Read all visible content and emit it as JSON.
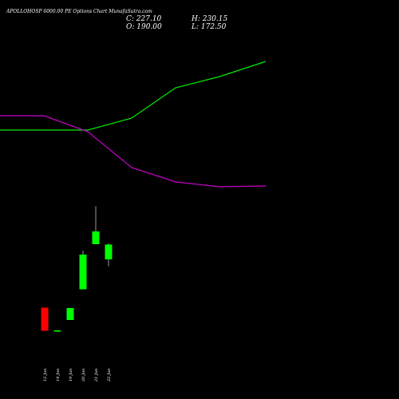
{
  "header": {
    "title": "APOLLOHOSP 6000.00  PE Options  Chart MunafaSutra.com",
    "close_label": "C: 227.10",
    "open_label": "O: 190.00",
    "high_label": "H: 230.15",
    "low_label": "L: 172.50"
  },
  "colors": {
    "background": "#000000",
    "up": "#00ff00",
    "down": "#ff0000",
    "line_green": "#00ee00",
    "line_magenta": "#cc00cc",
    "text": "#ffffff"
  },
  "chart_data": {
    "type": "candlestick",
    "categories": [
      "12 Jun",
      "14 Jun",
      "19 Jun",
      "20 Jun",
      "21 Jun",
      "22 Jun"
    ],
    "candles": [
      {
        "date": "12 Jun",
        "open": 69,
        "high": 69,
        "low": 11,
        "close": 11,
        "dir": "down"
      },
      {
        "date": "14 Jun",
        "open": 10,
        "high": 12,
        "low": 8,
        "close": 12,
        "dir": "up"
      },
      {
        "date": "19 Jun",
        "open": 38,
        "high": 68,
        "low": 38,
        "close": 68,
        "dir": "up"
      },
      {
        "date": "20 Jun",
        "open": 115,
        "high": 212,
        "low": 115,
        "close": 202,
        "dir": "up"
      },
      {
        "date": "21 Jun",
        "open": 228,
        "high": 323,
        "low": 228,
        "close": 260,
        "dir": "up"
      },
      {
        "date": "22 Jun",
        "open": 190,
        "high": 230.15,
        "low": 172.5,
        "close": 227.1,
        "dir": "up"
      }
    ],
    "lines": [
      {
        "color": "green",
        "x": [
          0,
          110,
          165,
          220,
          275,
          333
        ],
        "y": [
          163,
          163,
          148,
          110,
          96,
          77
        ]
      },
      {
        "color": "magenta",
        "x": [
          0,
          55,
          110,
          165,
          220,
          275,
          333
        ],
        "y": [
          145,
          145,
          165,
          210,
          228,
          234,
          233
        ]
      }
    ],
    "ylim": [
      0,
      400
    ]
  }
}
